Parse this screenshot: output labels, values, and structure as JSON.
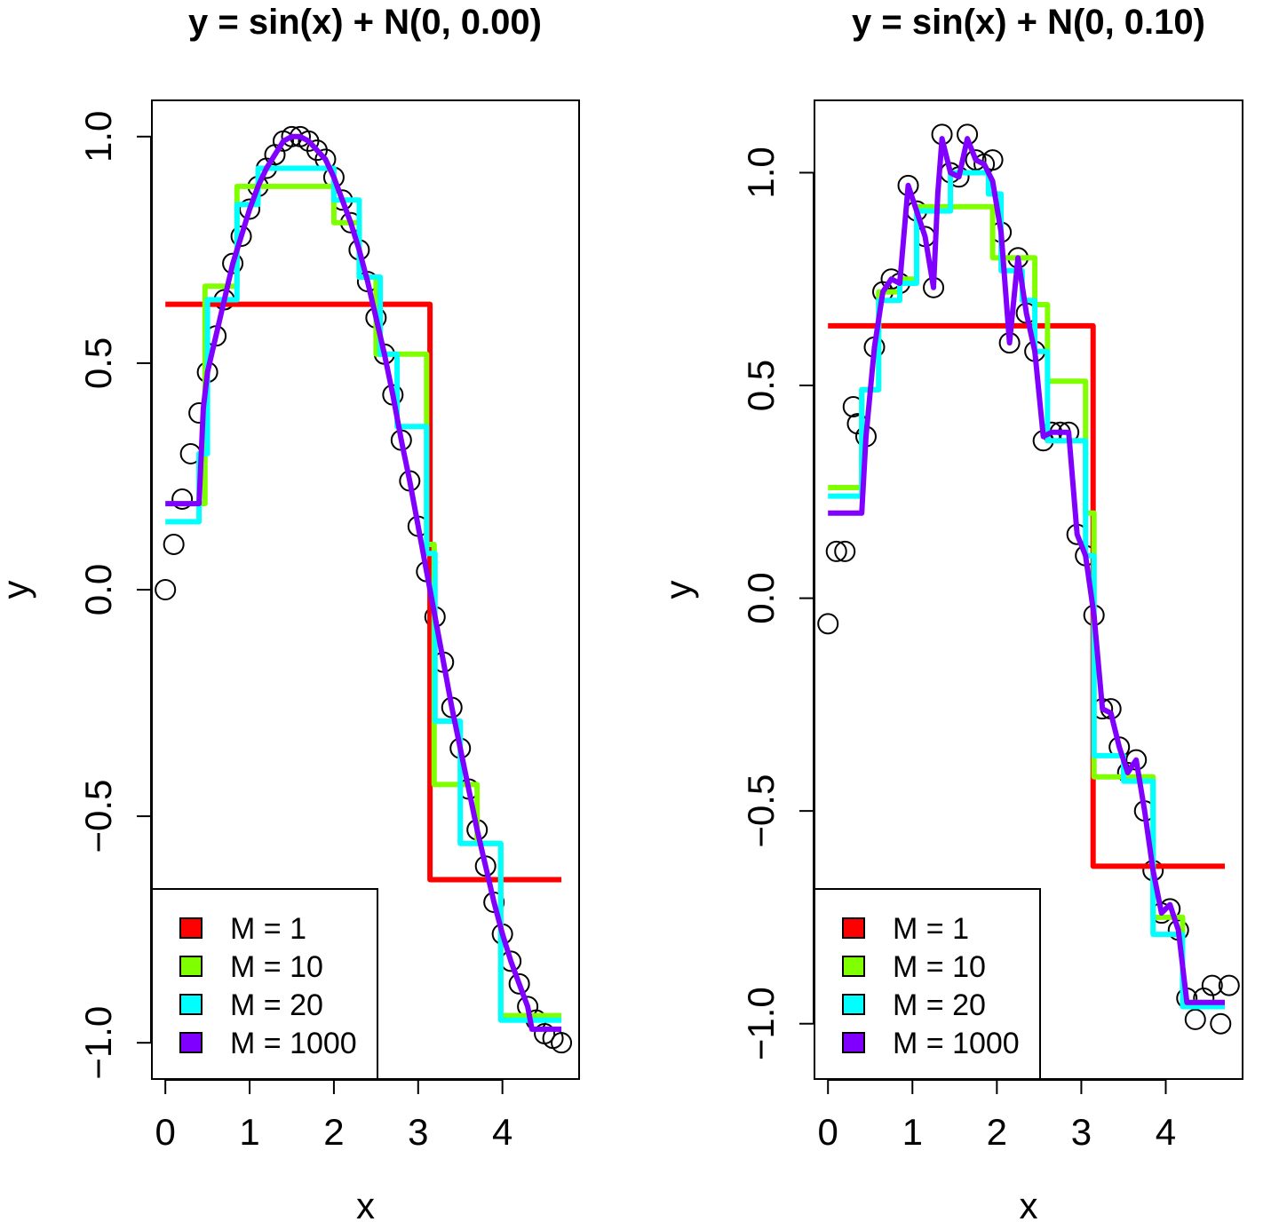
{
  "chart_data": [
    {
      "type": "line",
      "title": "y = sin(x) + N(0, 0.00)",
      "xlabel": "x",
      "ylabel": "y",
      "xlim": [
        -0.16,
        4.91
      ],
      "ylim": [
        -1.08,
        1.08
      ],
      "xticks": [
        0,
        1,
        2,
        3,
        4
      ],
      "yticks": [
        -1.0,
        -0.5,
        0.0,
        0.5,
        1.0
      ],
      "xtick_labels": [
        "0",
        "1",
        "2",
        "3",
        "4"
      ],
      "ytick_labels": [
        "−1.0",
        "−0.5",
        "0.0",
        "0.5",
        "1.0"
      ],
      "grid": false,
      "legend_position": "bottom-left",
      "points": {
        "x": [
          0,
          0.1,
          0.2,
          0.3,
          0.4,
          0.5,
          0.6,
          0.7,
          0.8,
          0.9,
          1.0,
          1.1,
          1.2,
          1.3,
          1.4,
          1.5,
          1.6,
          1.7,
          1.8,
          1.9,
          2.0,
          2.1,
          2.2,
          2.3,
          2.4,
          2.5,
          2.6,
          2.7,
          2.8,
          2.9,
          3.0,
          3.1,
          3.2,
          3.3,
          3.4,
          3.5,
          3.6,
          3.7,
          3.8,
          3.9,
          4.0,
          4.1,
          4.2,
          4.3,
          4.4,
          4.5,
          4.6,
          4.7
        ],
        "y": [
          0,
          0.1,
          0.2,
          0.3,
          0.39,
          0.48,
          0.56,
          0.64,
          0.72,
          0.78,
          0.84,
          0.89,
          0.93,
          0.96,
          0.99,
          1.0,
          1.0,
          0.99,
          0.97,
          0.95,
          0.91,
          0.86,
          0.81,
          0.75,
          0.68,
          0.6,
          0.52,
          0.43,
          0.33,
          0.24,
          0.14,
          0.04,
          -0.06,
          -0.16,
          -0.26,
          -0.35,
          -0.44,
          -0.53,
          -0.61,
          -0.69,
          -0.76,
          -0.82,
          -0.87,
          -0.92,
          -0.95,
          -0.98,
          -0.99,
          -1.0
        ]
      },
      "series": [
        {
          "name": "M = 1",
          "color": "#ff0000",
          "x": [
            0,
            3.14,
            3.14,
            4.7
          ],
          "y": [
            0.63,
            0.63,
            -0.64,
            -0.64
          ]
        },
        {
          "name": "M = 10",
          "color": "#80ff00",
          "x": [
            0,
            0.47,
            0.47,
            0.85,
            0.85,
            2.0,
            2.0,
            2.3,
            2.3,
            2.5,
            2.5,
            3.1,
            3.1,
            3.19,
            3.19,
            3.7,
            3.7,
            3.98,
            3.98,
            4.7
          ],
          "y": [
            0.19,
            0.19,
            0.67,
            0.67,
            0.89,
            0.89,
            0.81,
            0.81,
            0.69,
            0.69,
            0.52,
            0.52,
            0.1,
            0.1,
            -0.43,
            -0.43,
            -0.56,
            -0.56,
            -0.94,
            -0.94
          ]
        },
        {
          "name": "M = 20",
          "color": "#00ffff",
          "x": [
            0,
            0.4,
            0.4,
            0.5,
            0.5,
            0.85,
            0.85,
            1.1,
            1.1,
            2.0,
            2.0,
            2.3,
            2.3,
            2.55,
            2.55,
            2.75,
            2.75,
            3.1,
            3.1,
            3.2,
            3.2,
            3.5,
            3.5,
            3.98,
            3.98,
            4.7
          ],
          "y": [
            0.15,
            0.15,
            0.3,
            0.3,
            0.64,
            0.64,
            0.85,
            0.85,
            0.93,
            0.93,
            0.86,
            0.86,
            0.69,
            0.69,
            0.52,
            0.52,
            0.36,
            0.36,
            0.08,
            0.08,
            -0.29,
            -0.29,
            -0.56,
            -0.56,
            -0.95,
            -0.95
          ]
        },
        {
          "name": "M = 1000",
          "color": "#8000ff",
          "x": [
            0,
            0.4,
            0.45,
            0.5,
            0.6,
            0.7,
            0.8,
            0.9,
            1.0,
            1.1,
            1.2,
            1.3,
            1.4,
            1.5,
            1.6,
            1.7,
            1.8,
            1.9,
            2.0,
            2.1,
            2.2,
            2.3,
            2.4,
            2.5,
            2.6,
            2.7,
            2.8,
            2.9,
            3.0,
            3.1,
            3.2,
            3.3,
            3.4,
            3.5,
            3.6,
            3.7,
            3.8,
            3.9,
            4.0,
            4.1,
            4.2,
            4.3,
            4.35,
            4.7
          ],
          "y": [
            0.19,
            0.19,
            0.4,
            0.48,
            0.56,
            0.64,
            0.72,
            0.78,
            0.84,
            0.89,
            0.93,
            0.96,
            0.99,
            1.0,
            1.0,
            0.99,
            0.97,
            0.95,
            0.91,
            0.86,
            0.81,
            0.75,
            0.68,
            0.6,
            0.52,
            0.43,
            0.33,
            0.24,
            0.14,
            0.04,
            -0.06,
            -0.16,
            -0.26,
            -0.35,
            -0.44,
            -0.53,
            -0.61,
            -0.69,
            -0.76,
            -0.82,
            -0.87,
            -0.92,
            -0.97,
            -0.97
          ]
        }
      ]
    },
    {
      "type": "line",
      "title": "y = sin(x) + N(0, 0.10)",
      "xlabel": "x",
      "ylabel": "y",
      "xlim": [
        -0.16,
        4.91
      ],
      "ylim": [
        -1.13,
        1.17
      ],
      "xticks": [
        0,
        1,
        2,
        3,
        4
      ],
      "yticks": [
        -1.0,
        -0.5,
        0.0,
        0.5,
        1.0
      ],
      "xtick_labels": [
        "0",
        "1",
        "2",
        "3",
        "4"
      ],
      "ytick_labels": [
        "−1.0",
        "−0.5",
        "0.0",
        "0.5",
        "1.0"
      ],
      "grid": false,
      "legend_position": "bottom-left",
      "points": {
        "x": [
          0,
          0.1,
          0.2,
          0.3,
          0.35,
          0.45,
          0.55,
          0.65,
          0.75,
          0.85,
          0.95,
          1.05,
          1.15,
          1.25,
          1.35,
          1.45,
          1.55,
          1.65,
          1.75,
          1.85,
          1.95,
          2.05,
          2.15,
          2.25,
          2.35,
          2.45,
          2.55,
          2.65,
          2.75,
          2.85,
          2.95,
          3.05,
          3.15,
          3.25,
          3.35,
          3.45,
          3.55,
          3.65,
          3.75,
          3.85,
          3.95,
          4.05,
          4.15,
          4.25,
          4.35,
          4.45,
          4.55,
          4.65,
          4.75
        ],
        "y": [
          -0.06,
          0.11,
          0.11,
          0.45,
          0.41,
          0.38,
          0.59,
          0.72,
          0.75,
          0.74,
          0.97,
          0.91,
          0.85,
          0.73,
          1.09,
          1.0,
          0.99,
          1.09,
          1.03,
          1.02,
          1.03,
          0.86,
          0.6,
          0.8,
          0.67,
          0.58,
          0.37,
          0.39,
          0.39,
          0.39,
          0.15,
          0.1,
          -0.04,
          -0.26,
          -0.26,
          -0.35,
          -0.41,
          -0.38,
          -0.5,
          -0.64,
          -0.74,
          -0.73,
          -0.78,
          -0.94,
          -0.99,
          -0.94,
          -0.91,
          -1.0,
          -0.91
        ]
      },
      "series": [
        {
          "name": "M = 1",
          "color": "#ff0000",
          "x": [
            0,
            3.14,
            3.14,
            4.7
          ],
          "y": [
            0.64,
            0.64,
            -0.63,
            -0.63
          ]
        },
        {
          "name": "M = 10",
          "color": "#80ff00",
          "x": [
            0,
            0.4,
            0.4,
            0.6,
            0.6,
            0.85,
            0.85,
            1.05,
            1.05,
            1.95,
            1.95,
            2.45,
            2.45,
            2.6,
            2.6,
            3.05,
            3.05,
            3.15,
            3.15,
            3.85,
            3.85,
            4.2,
            4.2,
            4.7
          ],
          "y": [
            0.26,
            0.26,
            0.49,
            0.49,
            0.72,
            0.72,
            0.75,
            0.75,
            0.92,
            0.92,
            0.8,
            0.8,
            0.69,
            0.69,
            0.51,
            0.51,
            0.2,
            0.2,
            -0.42,
            -0.42,
            -0.75,
            -0.75,
            -0.95,
            -0.95
          ]
        },
        {
          "name": "M = 20",
          "color": "#00ffff",
          "x": [
            0,
            0.4,
            0.4,
            0.6,
            0.6,
            0.85,
            0.85,
            1.05,
            1.05,
            1.45,
            1.45,
            1.9,
            1.9,
            2.05,
            2.05,
            2.3,
            2.3,
            2.45,
            2.45,
            2.6,
            2.6,
            3.05,
            3.05,
            3.15,
            3.15,
            3.5,
            3.5,
            3.85,
            3.85,
            4.2,
            4.2,
            4.7
          ],
          "y": [
            0.24,
            0.24,
            0.49,
            0.49,
            0.7,
            0.7,
            0.74,
            0.74,
            0.91,
            0.91,
            1.0,
            1.0,
            0.95,
            0.95,
            0.77,
            0.77,
            0.7,
            0.7,
            0.58,
            0.58,
            0.37,
            0.37,
            0.1,
            0.1,
            -0.37,
            -0.37,
            -0.43,
            -0.43,
            -0.79,
            -0.79,
            -0.96,
            -0.96
          ]
        },
        {
          "name": "M = 1000",
          "color": "#8000ff",
          "x": [
            0,
            0.4,
            0.45,
            0.55,
            0.65,
            0.75,
            0.85,
            0.95,
            1.05,
            1.15,
            1.25,
            1.3,
            1.35,
            1.45,
            1.55,
            1.65,
            1.75,
            1.85,
            1.95,
            2.05,
            2.15,
            2.25,
            2.35,
            2.45,
            2.55,
            2.65,
            2.75,
            2.85,
            2.95,
            3.05,
            3.15,
            3.25,
            3.35,
            3.45,
            3.55,
            3.65,
            3.75,
            3.85,
            3.95,
            4.05,
            4.15,
            4.25,
            4.35,
            4.7
          ],
          "y": [
            0.2,
            0.2,
            0.38,
            0.59,
            0.72,
            0.75,
            0.74,
            0.97,
            0.91,
            0.85,
            0.73,
            0.95,
            1.08,
            1.0,
            0.99,
            1.08,
            1.03,
            1.02,
            0.98,
            0.86,
            0.6,
            0.8,
            0.67,
            0.58,
            0.38,
            0.39,
            0.39,
            0.39,
            0.15,
            0.1,
            -0.04,
            -0.26,
            -0.27,
            -0.35,
            -0.41,
            -0.38,
            -0.5,
            -0.64,
            -0.74,
            -0.72,
            -0.78,
            -0.95,
            -0.95,
            -0.95
          ]
        }
      ]
    }
  ]
}
